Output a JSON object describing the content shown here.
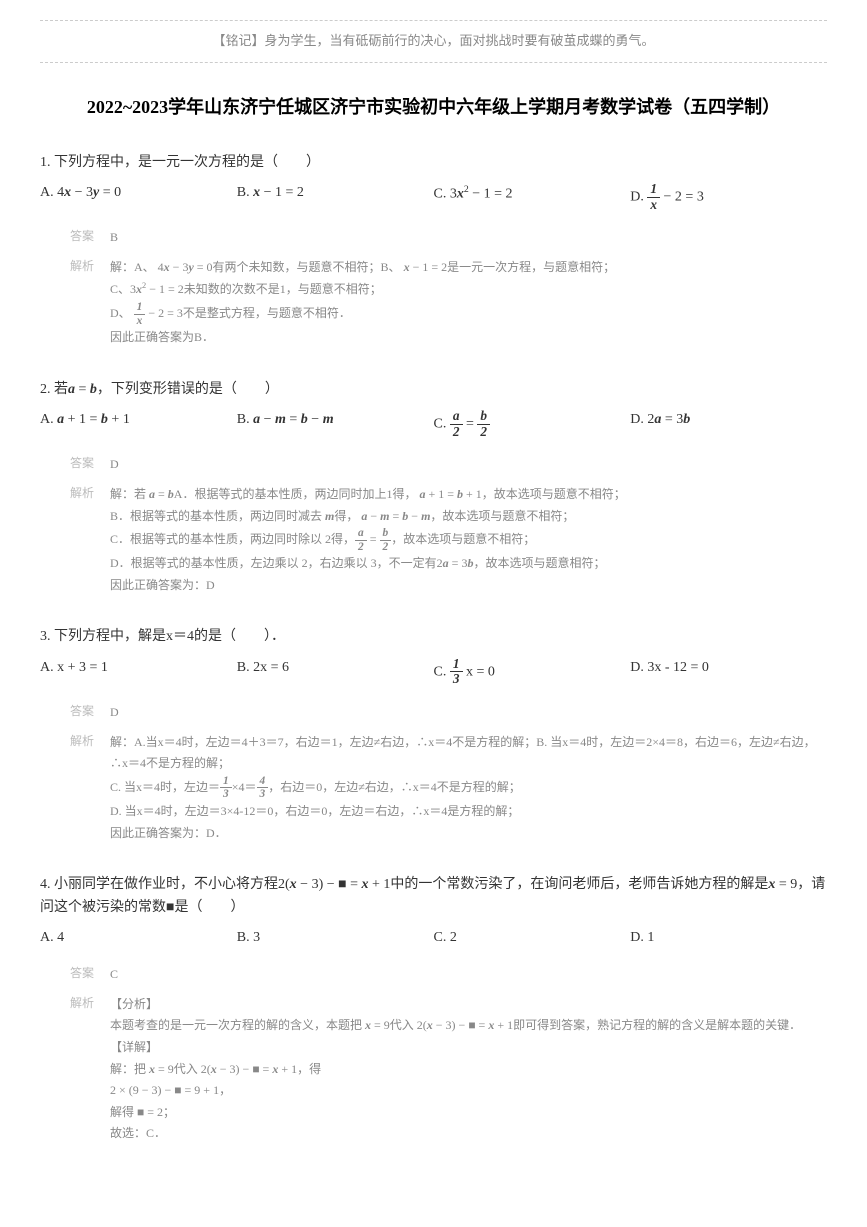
{
  "motto": "【铭记】身为学生，当有砥砺前行的决心，面对挑战时要有破茧成蝶的勇气。",
  "title": "2022~2023学年山东济宁任城区济宁市实验初中六年级上学期月考数学试卷（五四学制）",
  "questions": [
    {
      "num": "1.",
      "text": "下列方程中，是一元一次方程的是（　　）",
      "options": {
        "A": "4x − 3y = 0",
        "B": "x − 1 = 2",
        "C": "3x² − 1 = 2",
        "D": "1/x − 2 = 3"
      },
      "answer": "B",
      "analysis_lines": [
        "解：A、 4x − 3y = 0有两个未知数，与题意不相符；B、 x − 1 = 2是一元一次方程，与题意相符；",
        "C、3x² − 1 = 2未知数的次数不是1，与题意不相符；",
        "D、 1/x − 2 = 3不是整式方程，与题意不相符．",
        "因此正确答案为B．"
      ]
    },
    {
      "num": "2.",
      "text": "若a = b，下列变形错误的是（　　）",
      "options": {
        "A": "a + 1 = b + 1",
        "B": "a − m = b − m",
        "C": "a/2 = b/2",
        "D": "2a = 3b"
      },
      "answer": "D",
      "analysis_lines": [
        "解：若 a = bA．根据等式的基本性质，两边同时加上1得， a + 1 = b + 1，故本选项与题意不相符；",
        "B．根据等式的基本性质，两边同时减去 m得， a − m = b − m，故本选项与题意不相符；",
        "C．根据等式的基本性质，两边同时除以 2得，a/2 = b/2，故本选项与题意不相符；",
        "D．根据等式的基本性质，左边乘以 2，右边乘以 3，不一定有2a = 3b，故本选项与题意相符；",
        "因此正确答案为：D"
      ]
    },
    {
      "num": "3.",
      "text": "下列方程中，解是x＝4的是（　　）．",
      "options": {
        "A": "x + 3 = 1",
        "B": "2x = 6",
        "C": "1/3 x = 0",
        "D": "3x - 12 = 0"
      },
      "answer": "D",
      "analysis_lines": [
        "解：A.当x＝4时，左边＝4＋3＝7，右边＝1，左边≠右边，∴x＝4不是方程的解；B. 当x＝4时，左边＝2×4＝8，右边＝6，左边≠右边，∴x＝4不是方程的解；",
        "C. 当x＝4时，左边＝1/3×4＝4/3，右边＝0，左边≠右边，∴x＝4不是方程的解；",
        "D. 当x＝4时，左边＝3×4-12＝0，右边＝0，左边＝右边，∴x＝4是方程的解；",
        "因此正确答案为：D．"
      ]
    },
    {
      "num": "4.",
      "text": "小丽同学在做作业时，不小心将方程2(x − 3) − ■ = x + 1中的一个常数污染了，在询问老师后，老师告诉她方程的解是x = 9，请问这个被污染的常数■是（　　）",
      "options": {
        "A": "4",
        "B": "3",
        "C": "2",
        "D": "1"
      },
      "answer": "C",
      "analysis_lines": [
        "【分析】",
        "本题考查的是一元一次方程的解的含义，本题把 x = 9代入 2(x − 3) − ■ = x + 1即可得到答案，熟记方程的解的含义是解本题的关键．",
        "【详解】",
        "解：把 x = 9代入 2(x − 3) − ■ = x + 1，得",
        "2 × (9 − 3) − ■ = 9 + 1，",
        "解得 ■ = 2；",
        "故选：C．"
      ]
    }
  ],
  "labels": {
    "answer": "答案",
    "analysis": "解析"
  },
  "colors": {
    "text": "#333333",
    "muted": "#888888",
    "label": "#bbbbbb",
    "border": "#cccccc",
    "background": "#ffffff"
  }
}
